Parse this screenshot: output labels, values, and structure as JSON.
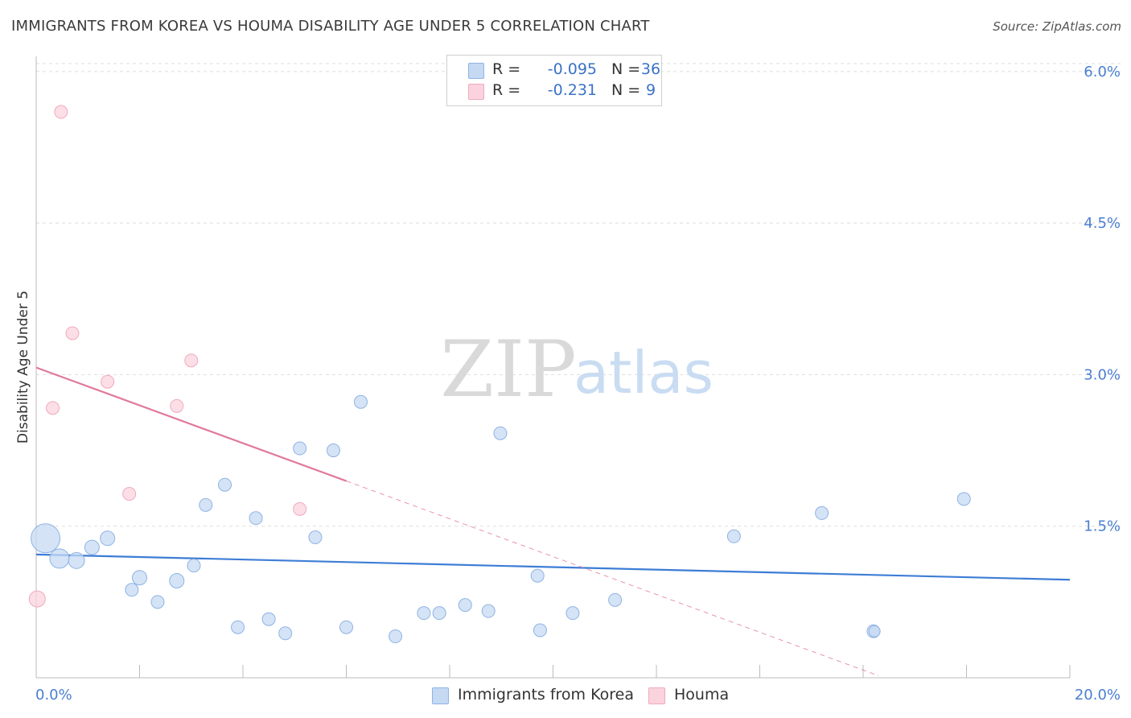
{
  "title": "IMMIGRANTS FROM KOREA VS HOUMA DISABILITY AGE UNDER 5 CORRELATION CHART",
  "source": "Source: ZipAtlas.com",
  "watermark": {
    "zip": "ZIP",
    "atlas": "atlas"
  },
  "colors": {
    "blue_fill": "#c5d9f3",
    "blue_stroke": "#8fb3e3",
    "blue_line": "#3d7dd6",
    "pink_fill": "#fbd3de",
    "pink_stroke": "#eeaabd",
    "pink_line": "#e07a9b",
    "tick_text": "#4a7fd0",
    "grid": "#dddddd"
  },
  "legend": {
    "r_label": "R =",
    "n_label": "N =",
    "series": [
      {
        "r": "-0.095",
        "n": "36"
      },
      {
        "r": "-0.231",
        "n": "9"
      }
    ]
  },
  "bottom_legend": [
    "Immigrants from Korea",
    "Houma"
  ],
  "chart_data": {
    "type": "scatter",
    "title": "IMMIGRANTS FROM KOREA VS HOUMA DISABILITY AGE UNDER 5 CORRELATION CHART",
    "xlabel": "",
    "ylabel": "Disability Age Under 5",
    "xlim": [
      0,
      20
    ],
    "ylim": [
      0,
      6.15
    ],
    "x_tick_labels": [
      "0.0%",
      "20.0%"
    ],
    "y_ticks": [
      {
        "value": 1.5,
        "label": "1.5%"
      },
      {
        "value": 3.0,
        "label": "3.0%"
      },
      {
        "value": 4.5,
        "label": "4.5%"
      },
      {
        "value": 6.0,
        "label": "6.0%"
      }
    ],
    "series": [
      {
        "name": "Immigrants from Korea",
        "r": -0.095,
        "n": 36,
        "points": [
          {
            "x": 0.18,
            "y": 1.38,
            "size": 18
          },
          {
            "x": 0.45,
            "y": 1.18,
            "size": 12
          },
          {
            "x": 0.78,
            "y": 1.16,
            "size": 10
          },
          {
            "x": 1.08,
            "y": 1.29,
            "size": 9
          },
          {
            "x": 1.38,
            "y": 1.38,
            "size": 9
          },
          {
            "x": 1.85,
            "y": 0.87,
            "size": 8
          },
          {
            "x": 2.0,
            "y": 0.99,
            "size": 9
          },
          {
            "x": 2.35,
            "y": 0.75,
            "size": 8
          },
          {
            "x": 2.72,
            "y": 0.96,
            "size": 9
          },
          {
            "x": 3.05,
            "y": 1.11,
            "size": 8
          },
          {
            "x": 3.28,
            "y": 1.71,
            "size": 8
          },
          {
            "x": 3.65,
            "y": 1.91,
            "size": 8
          },
          {
            "x": 3.9,
            "y": 0.5,
            "size": 8
          },
          {
            "x": 4.25,
            "y": 1.58,
            "size": 8
          },
          {
            "x": 4.5,
            "y": 0.58,
            "size": 8
          },
          {
            "x": 4.82,
            "y": 0.44,
            "size": 8
          },
          {
            "x": 5.1,
            "y": 2.27,
            "size": 8
          },
          {
            "x": 5.4,
            "y": 1.39,
            "size": 8
          },
          {
            "x": 5.75,
            "y": 2.25,
            "size": 8
          },
          {
            "x": 6.0,
            "y": 0.5,
            "size": 8
          },
          {
            "x": 6.28,
            "y": 2.73,
            "size": 8
          },
          {
            "x": 6.95,
            "y": 0.41,
            "size": 8
          },
          {
            "x": 7.5,
            "y": 0.64,
            "size": 8
          },
          {
            "x": 7.8,
            "y": 0.64,
            "size": 8
          },
          {
            "x": 8.3,
            "y": 0.72,
            "size": 8
          },
          {
            "x": 8.75,
            "y": 0.66,
            "size": 8
          },
          {
            "x": 8.98,
            "y": 2.42,
            "size": 8
          },
          {
            "x": 9.7,
            "y": 1.01,
            "size": 8
          },
          {
            "x": 9.75,
            "y": 0.47,
            "size": 8
          },
          {
            "x": 10.38,
            "y": 0.64,
            "size": 8
          },
          {
            "x": 11.2,
            "y": 0.77,
            "size": 8
          },
          {
            "x": 13.5,
            "y": 1.4,
            "size": 8
          },
          {
            "x": 15.2,
            "y": 1.63,
            "size": 8
          },
          {
            "x": 16.2,
            "y": 0.46,
            "size": 8
          },
          {
            "x": 16.22,
            "y": 0.46,
            "size": 7
          },
          {
            "x": 17.95,
            "y": 1.77,
            "size": 8
          }
        ],
        "trend": {
          "x0": 0,
          "y0": 1.22,
          "x1": 20,
          "y1": 0.97,
          "solid_to": 20
        }
      },
      {
        "name": "Houma",
        "r": -0.231,
        "n": 9,
        "points": [
          {
            "x": 0.02,
            "y": 0.78,
            "size": 10
          },
          {
            "x": 0.32,
            "y": 2.67,
            "size": 8
          },
          {
            "x": 0.48,
            "y": 5.6,
            "size": 8
          },
          {
            "x": 0.7,
            "y": 3.41,
            "size": 8
          },
          {
            "x": 1.38,
            "y": 2.93,
            "size": 8
          },
          {
            "x": 1.8,
            "y": 1.82,
            "size": 8
          },
          {
            "x": 2.72,
            "y": 2.69,
            "size": 8
          },
          {
            "x": 3.0,
            "y": 3.14,
            "size": 8
          },
          {
            "x": 5.1,
            "y": 1.67,
            "size": 8
          }
        ],
        "trend": {
          "x0": 0,
          "y0": 3.07,
          "x1": 16.3,
          "y1": 0.02,
          "solid_to": 6.0
        }
      }
    ]
  }
}
